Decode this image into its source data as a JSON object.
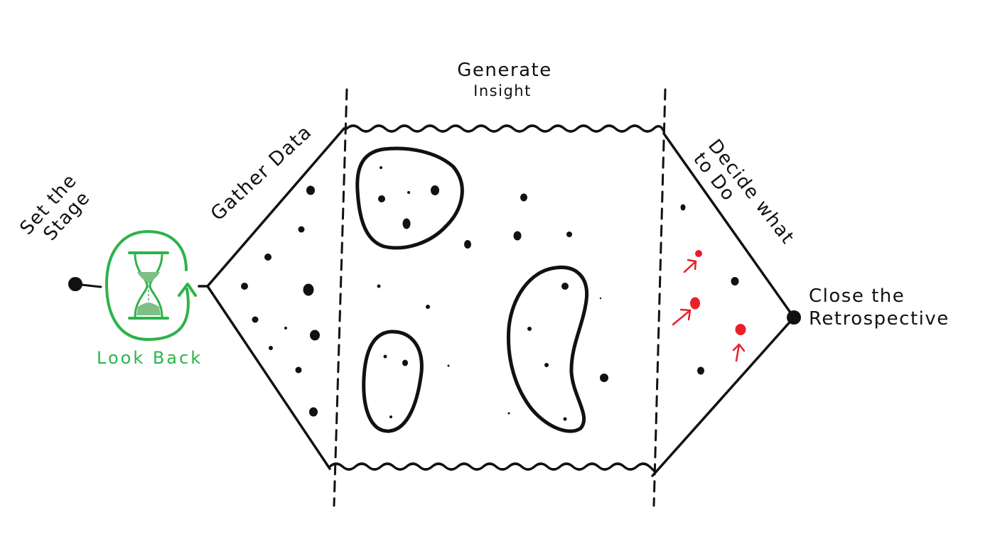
{
  "labels": {
    "set_stage_line1": "Set the",
    "set_stage_line2": "Stage",
    "look_back": "Look Back",
    "gather_data": "Gather Data",
    "generate_line1": "Generate",
    "generate_line2": "Insight",
    "decide_line1": "Decide what",
    "decide_line2": "to Do",
    "close_line1": "Close the",
    "close_line2": "Retrospective"
  },
  "colors": {
    "ink": "#111111",
    "accent_green": "#2db34a",
    "hourglass_sand": "#7fbf85",
    "action_red": "#e8202a"
  },
  "icons": [
    "hourglass-icon",
    "cycle-arrow-icon",
    "start-dot-icon",
    "end-dot-icon",
    "red-arrow-icon"
  ]
}
